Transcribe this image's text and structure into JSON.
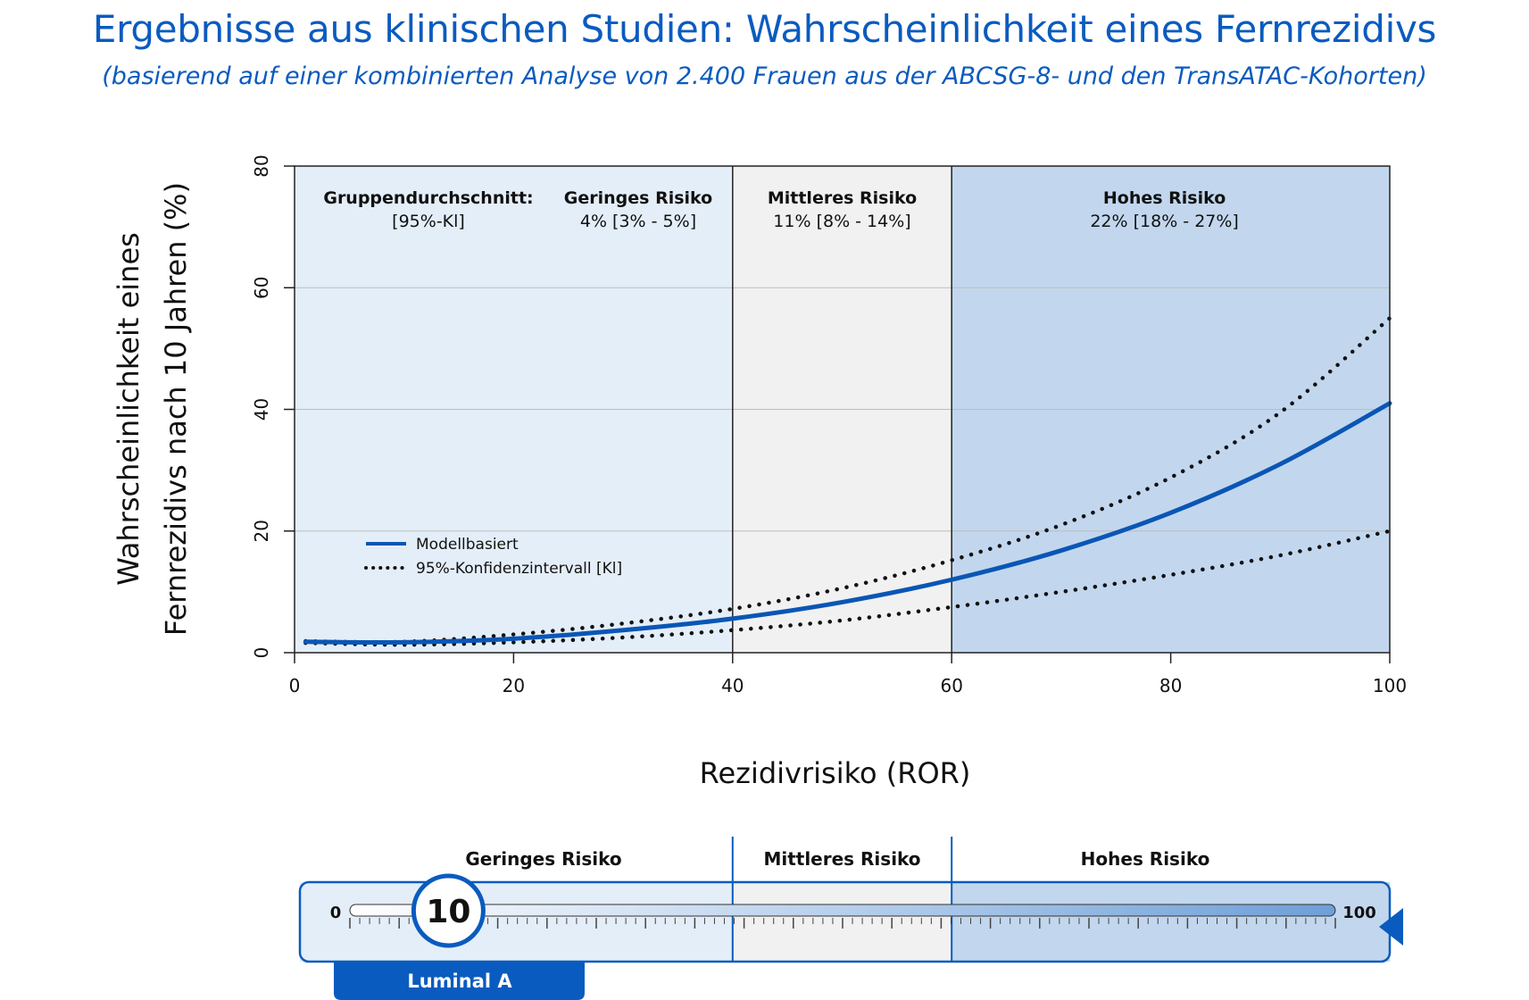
{
  "title": "Ergebnisse aus klinischen Studien: Wahrscheinlichkeit eines Fernrezidivs",
  "subtitle": "(basierend auf einer kombinierten Analyse von 2.400 Frauen aus der ABCSG-8- und den TransATAC-Kohorten)",
  "colors": {
    "accent": "#0a5bbf",
    "low_zone": "#e4eef8",
    "mid_zone": "#f1f1f1",
    "high_zone": "#c2d7ee",
    "curve": "#0a56b5",
    "ci": "#111111"
  },
  "chart_data": {
    "type": "line",
    "xlabel": "Rezidivrisiko (ROR)",
    "ylabel_lines": [
      "Wahrscheinlichkeit eines",
      "Fernrezidivs nach 10 Jahren (%)"
    ],
    "xlim": [
      0,
      100
    ],
    "ylim": [
      0,
      80
    ],
    "x_ticks": [
      0,
      20,
      40,
      60,
      80,
      100
    ],
    "y_ticks": [
      0,
      20,
      40,
      60,
      80
    ],
    "grid": "horizontal",
    "legend_position": "lower-left",
    "zones": [
      {
        "name": "Geringes Risiko",
        "from": 0,
        "to": 40,
        "value": "4% [3% - 5%]"
      },
      {
        "name": "Mittleres Risiko",
        "from": 40,
        "to": 60,
        "value": "11% [8% - 14%]"
      },
      {
        "name": "Hohes Risiko",
        "from": 60,
        "to": 100,
        "value": "22% [18% - 27%]"
      }
    ],
    "group_label": {
      "line1": "Gruppendurchschnitt:",
      "line2": "[95%-Kl]"
    },
    "series": [
      {
        "name": "Modellbasiert",
        "style": "solid",
        "x": [
          1,
          10,
          20,
          30,
          40,
          50,
          60,
          70,
          80,
          90,
          100
        ],
        "y": [
          1.8,
          1.7,
          2.3,
          3.7,
          5.6,
          8.3,
          12.0,
          16.8,
          23.0,
          31.0,
          41.0
        ]
      },
      {
        "name": "95%-Konfidenzintervall [Kl]",
        "style": "dotted",
        "x": [
          1,
          10,
          20,
          30,
          40,
          50,
          60,
          70,
          80,
          90,
          100
        ],
        "y": [
          1.9,
          1.8,
          3.0,
          4.8,
          7.2,
          10.6,
          15.2,
          21.0,
          28.8,
          39.5,
          55.0
        ]
      },
      {
        "name": "",
        "style": "dotted",
        "x": [
          1,
          10,
          20,
          30,
          40,
          50,
          60,
          70,
          80,
          90,
          100
        ],
        "y": [
          1.6,
          1.3,
          1.7,
          2.5,
          3.7,
          5.3,
          7.5,
          10.0,
          12.8,
          16.0,
          20.0
        ]
      }
    ]
  },
  "scale": {
    "min_label": "0",
    "max_label": "100",
    "value": 10,
    "value_label": "10",
    "subtype_label": "Luminal A",
    "zones": [
      "Geringes Risiko",
      "Mittleres Risiko",
      "Hohes Risiko"
    ]
  }
}
